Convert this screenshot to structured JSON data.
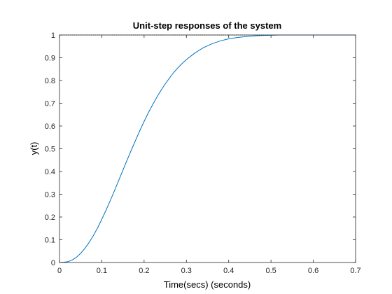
{
  "chart_data": {
    "type": "line",
    "title": "Unit-step responses of the system",
    "xlabel": "Time(secs) (seconds)",
    "ylabel": "y(t)",
    "xlim": [
      0,
      0.7
    ],
    "ylim": [
      0,
      1
    ],
    "xticks": [
      0,
      0.1,
      0.2,
      0.3,
      0.4,
      0.5,
      0.6,
      0.7
    ],
    "xtick_labels": [
      "0",
      "0.1",
      "0.2",
      "0.3",
      "0.4",
      "0.5",
      "0.6",
      "0.7"
    ],
    "yticks": [
      0,
      0.1,
      0.2,
      0.3,
      0.4,
      0.5,
      0.6,
      0.7,
      0.8,
      0.9,
      1
    ],
    "ytick_labels": [
      "0",
      "0.1",
      "0.2",
      "0.3",
      "0.4",
      "0.5",
      "0.6",
      "0.7",
      "0.8",
      "0.9",
      "1"
    ],
    "grid": false,
    "reference_line": {
      "y": 1,
      "style": "dotted",
      "color": "#000000"
    },
    "series": [
      {
        "color": "#0072BD",
        "x": [
          0,
          0.01,
          0.02,
          0.03,
          0.04,
          0.05,
          0.06,
          0.07,
          0.08,
          0.09,
          0.1,
          0.11,
          0.12,
          0.13,
          0.14,
          0.15,
          0.16,
          0.17,
          0.18,
          0.19,
          0.2,
          0.21,
          0.22,
          0.23,
          0.24,
          0.25,
          0.26,
          0.27,
          0.28,
          0.29,
          0.3,
          0.32,
          0.34,
          0.36,
          0.38,
          0.4,
          0.42,
          0.44,
          0.46,
          0.48,
          0.5,
          0.52,
          0.55,
          0.6,
          0.65,
          0.7
        ],
        "y": [
          0,
          0.001,
          0.004,
          0.011,
          0.023,
          0.04,
          0.062,
          0.088,
          0.118,
          0.152,
          0.19,
          0.23,
          0.272,
          0.316,
          0.361,
          0.406,
          0.451,
          0.495,
          0.538,
          0.58,
          0.62,
          0.658,
          0.693,
          0.726,
          0.757,
          0.785,
          0.811,
          0.835,
          0.856,
          0.875,
          0.892,
          0.921,
          0.944,
          0.961,
          0.974,
          0.983,
          0.989,
          0.993,
          0.996,
          0.998,
          0.999,
          1.0,
          1.0,
          1.0,
          1.0,
          1.0
        ]
      }
    ]
  }
}
